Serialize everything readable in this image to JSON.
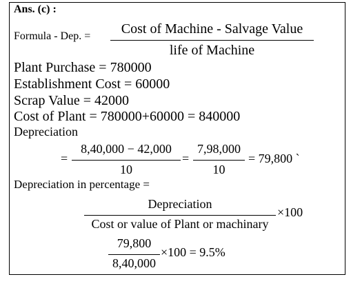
{
  "header": {
    "title": "Ans. (c) :"
  },
  "formula": {
    "label": "Formula - Dep. =",
    "numerator": "Cost of Machine - Salvage Value",
    "denominator": "life of Machine"
  },
  "lines": [
    "Plant Purchase = 780000",
    "Establishment Cost = 60000",
    "Scrap Value = 42000",
    "Cost of Plant = 780000+60000 = 840000"
  ],
  "depreciation": {
    "label": "Depreciation",
    "lead": "=",
    "fraction1": {
      "numerator": "8,40,000 − 42,000",
      "denominator": "10"
    },
    "equals": "=",
    "fraction2": {
      "numerator": "7,98,000",
      "denominator": "10"
    },
    "result": "= 79,800 `"
  },
  "percentage": {
    "label": "Depreciation in percentage =",
    "numerator": "Depreciation",
    "denominator": "Cost or value of Plant or machinary",
    "multiplier": "×100",
    "calc": {
      "numerator": "79,800",
      "denominator": "8,40,000",
      "result": "×100 = 9.5%"
    }
  }
}
